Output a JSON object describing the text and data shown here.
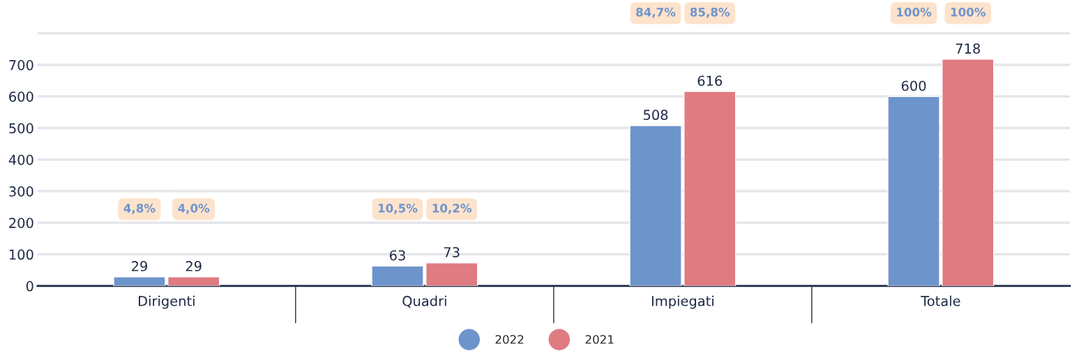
{
  "chart_data": {
    "type": "bar",
    "categories": [
      "Dirigenti",
      "Quadri",
      "Impiegati",
      "Totale"
    ],
    "series": [
      {
        "name": "2022",
        "color": "#6e94cc",
        "values": [
          29,
          63,
          508,
          600
        ]
      },
      {
        "name": "2021",
        "color": "#e07b82",
        "values": [
          29,
          73,
          616,
          718
        ]
      }
    ],
    "ylim": [
      0,
      900
    ],
    "yticks": [
      0,
      100,
      200,
      300,
      400,
      500,
      600,
      700,
      {
        "value": 800,
        "label": null
      }
    ],
    "grid": "y",
    "legend": "bottom",
    "data_labels": true,
    "annotations": [
      "4,8%",
      "4,0%",
      "10,5%",
      "10,2%",
      "84,7%",
      "85,8%",
      "100%",
      "100%"
    ]
  }
}
